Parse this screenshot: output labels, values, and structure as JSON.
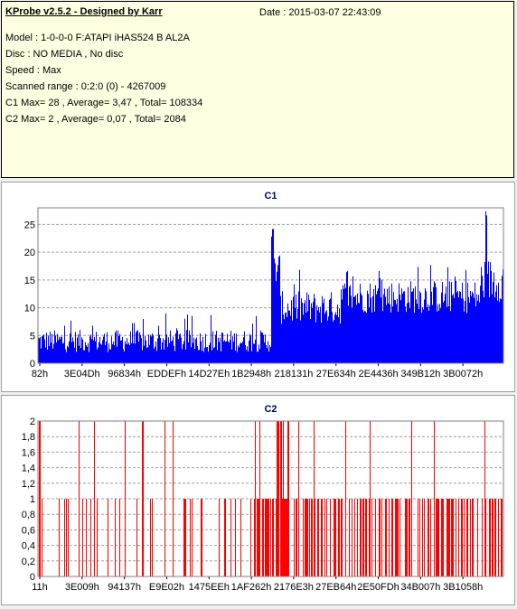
{
  "info": {
    "title": "KProbe v2.5.2 - Designed by Karr",
    "date": "Date : 2015-03-07 22:43:09",
    "lines": [
      "Model : 1-0-0-0 F:ATAPI  iHAS524  B     AL2A",
      "Disc : NO MEDIA , No disc",
      "Speed : Max",
      "Scanned range : 0:2:0 (0) - 4267009",
      "C1 Max= 28 , Average= 3,47 , Total= 108334",
      "C2 Max= 2 , Average= 0,07 , Total= 2084"
    ]
  },
  "colors": {
    "c1": "#0000ff",
    "c2": "#ff0000",
    "title": "#000080",
    "panel_bg": "#ffffff",
    "info_bg": "#ffffe1"
  },
  "chart_data": [
    {
      "type": "bar",
      "title": "C1",
      "xlabel": "",
      "ylabel": "",
      "ylim": [
        0,
        28
      ],
      "yticks": [
        "0",
        "5",
        "10",
        "15",
        "20",
        "25"
      ],
      "xticks": [
        "82h",
        "3E04Dh",
        "96834h",
        "EDDEFh",
        "14D27Eh",
        "1B2948h",
        "218131h",
        "27E634h",
        "2E4436h",
        "349B12h",
        "3B0072h"
      ],
      "grid": true,
      "series": [
        {
          "segments": [
            {
              "from": 0.0,
              "to": 0.5,
              "base": 2,
              "spread": 4,
              "peak": 9
            },
            {
              "from": 0.5,
              "to": 0.505,
              "base": 20,
              "spread": 5,
              "peak": 25
            },
            {
              "from": 0.505,
              "to": 0.52,
              "base": 14,
              "spread": 6,
              "peak": 20
            },
            {
              "from": 0.52,
              "to": 0.65,
              "base": 7,
              "spread": 6,
              "peak": 17
            },
            {
              "from": 0.65,
              "to": 0.95,
              "base": 9,
              "spread": 6,
              "peak": 18
            },
            {
              "from": 0.95,
              "to": 1.0,
              "base": 11,
              "spread": 8,
              "peak": 28
            }
          ],
          "max": 28,
          "average": 3.47,
          "total": 108334
        }
      ]
    },
    {
      "type": "bar",
      "title": "C2",
      "xlabel": "",
      "ylabel": "",
      "ylim": [
        0,
        2
      ],
      "yticks": [
        "0",
        "0,2",
        "0,4",
        "0,6",
        "0,8",
        "1",
        "1,2",
        "1,4",
        "1,6",
        "1,8",
        "2"
      ],
      "xticks": [
        "11h",
        "3E009h",
        "94137h",
        "E9E02h",
        "1475EEh",
        "1AF262h",
        "2176E3h",
        "27EB64h",
        "2E50FDh",
        "34B007h",
        "3B1058h"
      ],
      "grid": true,
      "series": [
        {
          "values_note": "",
          "max": 2,
          "average": 0.07,
          "total": 2084
        }
      ]
    }
  ]
}
